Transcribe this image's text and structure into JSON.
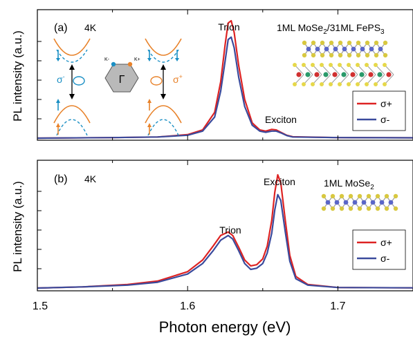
{
  "colors": {
    "sigma_plus": "#dd2222",
    "sigma_minus": "#3a4a9c",
    "orange": "#e8822a",
    "cyan": "#1a8fc4",
    "hexagon": "#b9b9b9"
  },
  "x_axis": {
    "label": "Photon energy (eV)",
    "range": [
      1.5,
      1.75
    ],
    "ticks": [
      "1.5",
      "1.6",
      "1.7"
    ]
  },
  "y_axis": {
    "label": "PL intensity (a.u.)"
  },
  "chart_data": [
    {
      "type": "line",
      "panel": "(a)",
      "temperature": "4K",
      "sample_label": {
        "main": "1ML MoSe",
        "sub1": "2",
        "mid": "/31ML FePS",
        "sub2": "3"
      },
      "peak_labels": [
        "Trion",
        "Exciton"
      ],
      "legend": [
        {
          "symbol": "σ+"
        },
        {
          "symbol": "σ-"
        }
      ],
      "legend_position": "right",
      "xlim": [
        1.5,
        1.75
      ],
      "ylim": [
        0,
        1.2
      ],
      "series": [
        {
          "name": "σ+",
          "x": [
            1.5,
            1.55,
            1.58,
            1.6,
            1.61,
            1.618,
            1.622,
            1.625,
            1.627,
            1.629,
            1.631,
            1.634,
            1.638,
            1.643,
            1.648,
            1.652,
            1.656,
            1.659,
            1.662,
            1.666,
            1.67,
            1.7,
            1.75
          ],
          "y": [
            0.0,
            0.005,
            0.01,
            0.03,
            0.07,
            0.22,
            0.48,
            0.8,
            0.98,
            1.0,
            0.9,
            0.62,
            0.33,
            0.13,
            0.07,
            0.06,
            0.075,
            0.07,
            0.05,
            0.025,
            0.012,
            0.005,
            0.003
          ]
        },
        {
          "name": "σ-",
          "x": [
            1.5,
            1.55,
            1.58,
            1.6,
            1.61,
            1.618,
            1.622,
            1.625,
            1.627,
            1.629,
            1.631,
            1.634,
            1.638,
            1.643,
            1.648,
            1.652,
            1.656,
            1.659,
            1.662,
            1.666,
            1.67,
            1.7,
            1.75
          ],
          "y": [
            0.0,
            0.005,
            0.01,
            0.025,
            0.06,
            0.18,
            0.4,
            0.66,
            0.84,
            0.86,
            0.77,
            0.52,
            0.27,
            0.11,
            0.06,
            0.05,
            0.06,
            0.06,
            0.045,
            0.022,
            0.01,
            0.005,
            0.003
          ]
        }
      ]
    },
    {
      "type": "line",
      "panel": "(b)",
      "temperature": "4K",
      "sample_label": {
        "main": "1ML MoSe",
        "sub1": "2",
        "mid": "",
        "sub2": ""
      },
      "peak_labels": [
        "Trion",
        "Exciton"
      ],
      "legend": [
        {
          "symbol": "σ+"
        },
        {
          "symbol": "σ-"
        }
      ],
      "legend_position": "right",
      "xlim": [
        1.5,
        1.75
      ],
      "ylim": [
        0,
        1.2
      ],
      "series": [
        {
          "name": "σ+",
          "x": [
            1.5,
            1.53,
            1.56,
            1.58,
            1.6,
            1.61,
            1.617,
            1.622,
            1.627,
            1.63,
            1.634,
            1.638,
            1.642,
            1.646,
            1.65,
            1.653,
            1.656,
            1.658,
            1.66,
            1.662,
            1.665,
            1.668,
            1.672,
            1.68,
            1.7,
            1.75
          ],
          "y": [
            0.0,
            0.01,
            0.03,
            0.06,
            0.14,
            0.24,
            0.36,
            0.45,
            0.48,
            0.45,
            0.35,
            0.24,
            0.19,
            0.2,
            0.25,
            0.36,
            0.58,
            0.82,
            0.97,
            0.9,
            0.58,
            0.28,
            0.1,
            0.03,
            0.005,
            0.002
          ]
        },
        {
          "name": "σ-",
          "x": [
            1.5,
            1.53,
            1.56,
            1.58,
            1.6,
            1.61,
            1.617,
            1.622,
            1.627,
            1.63,
            1.634,
            1.638,
            1.642,
            1.646,
            1.65,
            1.653,
            1.656,
            1.658,
            1.66,
            1.662,
            1.665,
            1.668,
            1.672,
            1.68,
            1.7,
            1.75
          ],
          "y": [
            0.0,
            0.01,
            0.025,
            0.05,
            0.12,
            0.21,
            0.32,
            0.41,
            0.45,
            0.42,
            0.32,
            0.21,
            0.16,
            0.17,
            0.21,
            0.3,
            0.47,
            0.67,
            0.8,
            0.75,
            0.48,
            0.23,
            0.08,
            0.025,
            0.005,
            0.002
          ]
        }
      ]
    }
  ],
  "inset": {
    "sigma_minus": "σ",
    "sigma_minus_sup": "-",
    "sigma_plus": "σ",
    "sigma_plus_sup": "+",
    "gamma": "Γ",
    "k_minus": "K-",
    "k_plus": "K+"
  }
}
